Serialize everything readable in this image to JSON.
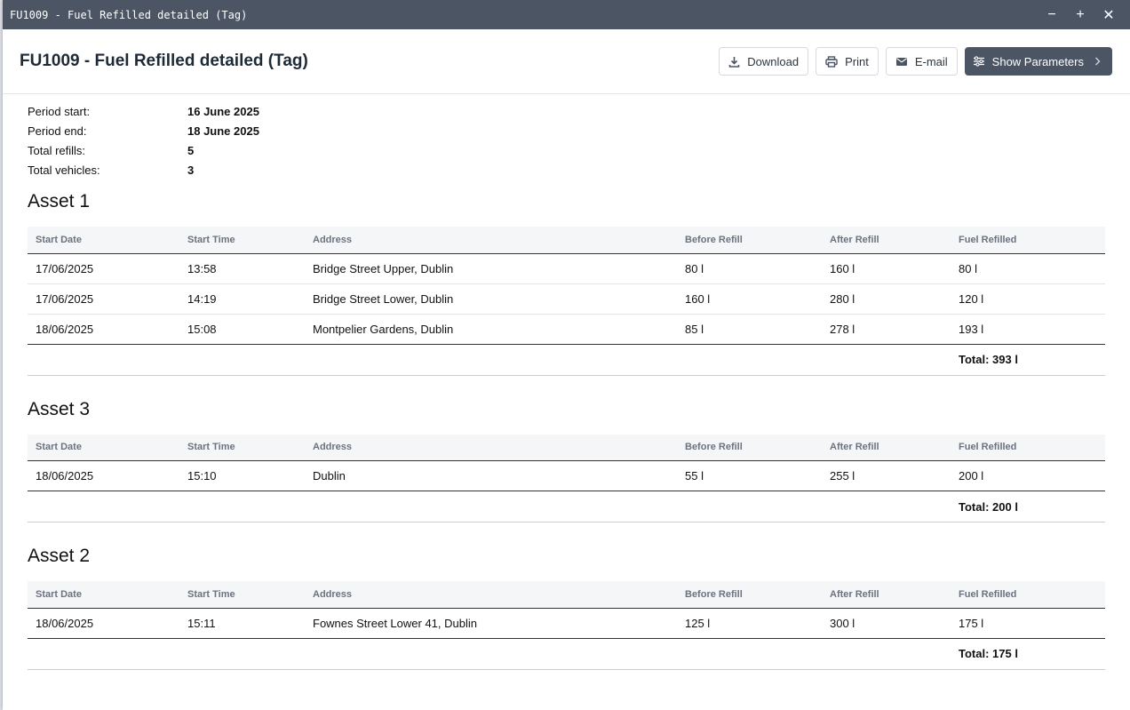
{
  "window": {
    "title": "FU1009 - Fuel Refilled detailed (Tag)",
    "minimize": "−",
    "maximize": "+",
    "close": "✕"
  },
  "header": {
    "title": "FU1009 - Fuel Refilled detailed (Tag)",
    "download_label": "Download",
    "print_label": "Print",
    "email_label": "E-mail",
    "params_label": "Show Parameters"
  },
  "summary": {
    "period_start_label": "Period start:",
    "period_start": "16 June 2025",
    "period_end_label": "Period end:",
    "period_end": "18 June 2025",
    "total_refills_label": "Total refills:",
    "total_refills": "5",
    "total_vehicles_label": "Total vehicles:",
    "total_vehicles": "3"
  },
  "columns": [
    "Start Date",
    "Start Time",
    "Address",
    "Before Refill",
    "After Refill",
    "Fuel Refilled"
  ],
  "assets": [
    {
      "name": "Asset 1",
      "rows": [
        [
          "17/06/2025",
          "13:58",
          "Bridge Street Upper, Dublin",
          "80 l",
          "160 l",
          "80 l"
        ],
        [
          "17/06/2025",
          "14:19",
          "Bridge Street Lower, Dublin",
          "160 l",
          "280 l",
          "120 l"
        ],
        [
          "18/06/2025",
          "15:08",
          "Montpelier Gardens, Dublin",
          "85 l",
          "278 l",
          "193 l"
        ]
      ],
      "total": "Total: 393 l"
    },
    {
      "name": "Asset 3",
      "rows": [
        [
          "18/06/2025",
          "15:10",
          "Dublin",
          "55 l",
          "255 l",
          "200 l"
        ]
      ],
      "total": "Total: 200 l"
    },
    {
      "name": "Asset 2",
      "rows": [
        [
          "18/06/2025",
          "15:11",
          "Fownes Street Lower 41, Dublin",
          "125 l",
          "300 l",
          "175 l"
        ]
      ],
      "total": "Total: 175 l"
    }
  ]
}
